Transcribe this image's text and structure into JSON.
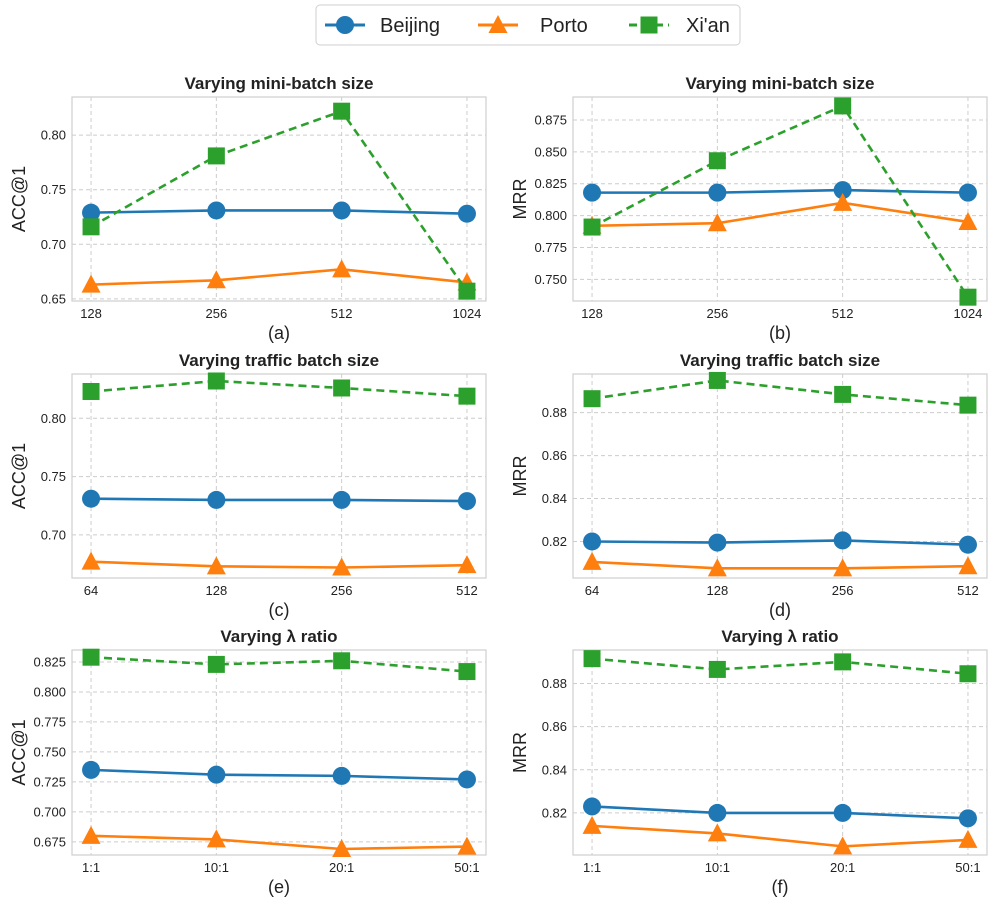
{
  "colors": {
    "Beijing": "#1f77b4",
    "Porto": "#ff7f0e",
    "Xi'an": "#2ca02c"
  },
  "legend": {
    "items": [
      {
        "label": "Beijing",
        "marker": "circle",
        "dashed": false
      },
      {
        "label": "Porto",
        "marker": "triangle",
        "dashed": false
      },
      {
        "label": "Xi'an",
        "marker": "square",
        "dashed": true
      }
    ]
  },
  "chart_data": [
    {
      "type": "line",
      "panel": "(a)",
      "title": "Varying mini-batch size",
      "ylabel": "ACC@1",
      "categories": [
        "128",
        "256",
        "512",
        "1024"
      ],
      "ylim": [
        0.648,
        0.835
      ],
      "yticks": [
        0.65,
        0.7,
        0.75,
        0.8
      ],
      "ytick_labels": [
        "0.65",
        "0.70",
        "0.75",
        "0.80"
      ],
      "series": [
        {
          "name": "Beijing",
          "values": [
            0.729,
            0.731,
            0.731,
            0.728
          ]
        },
        {
          "name": "Porto",
          "values": [
            0.663,
            0.667,
            0.677,
            0.665
          ]
        },
        {
          "name": "Xi'an",
          "values": [
            0.716,
            0.781,
            0.822,
            0.657
          ]
        }
      ]
    },
    {
      "type": "line",
      "panel": "(b)",
      "title": "Varying mini-batch size",
      "ylabel": "MRR",
      "categories": [
        "128",
        "256",
        "512",
        "1024"
      ],
      "ylim": [
        0.733,
        0.893
      ],
      "yticks": [
        0.75,
        0.775,
        0.8,
        0.825,
        0.85,
        0.875
      ],
      "ytick_labels": [
        "0.750",
        "0.775",
        "0.800",
        "0.825",
        "0.850",
        "0.875"
      ],
      "series": [
        {
          "name": "Beijing",
          "values": [
            0.818,
            0.818,
            0.82,
            0.818
          ]
        },
        {
          "name": "Porto",
          "values": [
            0.792,
            0.794,
            0.81,
            0.795
          ]
        },
        {
          "name": "Xi'an",
          "values": [
            0.791,
            0.843,
            0.886,
            0.736
          ]
        }
      ]
    },
    {
      "type": "line",
      "panel": "(c)",
      "title": "Varying traffic batch size",
      "ylabel": "ACC@1",
      "categories": [
        "64",
        "128",
        "256",
        "512"
      ],
      "ylim": [
        0.663,
        0.838
      ],
      "yticks": [
        0.7,
        0.75,
        0.8
      ],
      "ytick_labels": [
        "0.70",
        "0.75",
        "0.80"
      ],
      "series": [
        {
          "name": "Beijing",
          "values": [
            0.731,
            0.73,
            0.73,
            0.729
          ]
        },
        {
          "name": "Porto",
          "values": [
            0.677,
            0.673,
            0.672,
            0.674
          ]
        },
        {
          "name": "Xi'an",
          "values": [
            0.823,
            0.832,
            0.826,
            0.819
          ]
        }
      ]
    },
    {
      "type": "line",
      "panel": "(d)",
      "title": "Varying traffic batch size",
      "ylabel": "MRR",
      "categories": [
        "64",
        "128",
        "256",
        "512"
      ],
      "ylim": [
        0.803,
        0.898
      ],
      "yticks": [
        0.82,
        0.84,
        0.86,
        0.88
      ],
      "ytick_labels": [
        "0.82",
        "0.84",
        "0.86",
        "0.88"
      ],
      "series": [
        {
          "name": "Beijing",
          "values": [
            0.82,
            0.8195,
            0.8205,
            0.8185
          ]
        },
        {
          "name": "Porto",
          "values": [
            0.8105,
            0.8075,
            0.8075,
            0.8085
          ]
        },
        {
          "name": "Xi'an",
          "values": [
            0.8865,
            0.895,
            0.8885,
            0.8835
          ]
        }
      ]
    },
    {
      "type": "line",
      "panel": "(e)",
      "title": "Varying λ ratio",
      "ylabel": "ACC@1",
      "categories": [
        "1:1",
        "10:1",
        "20:1",
        "50:1"
      ],
      "ylim": [
        0.664,
        0.835
      ],
      "yticks": [
        0.675,
        0.7,
        0.725,
        0.75,
        0.775,
        0.8,
        0.825
      ],
      "ytick_labels": [
        "0.675",
        "0.700",
        "0.725",
        "0.750",
        "0.775",
        "0.800",
        "0.825"
      ],
      "series": [
        {
          "name": "Beijing",
          "values": [
            0.735,
            0.731,
            0.73,
            0.727
          ]
        },
        {
          "name": "Porto",
          "values": [
            0.68,
            0.677,
            0.669,
            0.671
          ]
        },
        {
          "name": "Xi'an",
          "values": [
            0.829,
            0.823,
            0.826,
            0.817
          ]
        }
      ]
    },
    {
      "type": "line",
      "panel": "(f)",
      "title": "Varying λ ratio",
      "ylabel": "MRR",
      "categories": [
        "1:1",
        "10:1",
        "20:1",
        "50:1"
      ],
      "ylim": [
        0.8005,
        0.8955
      ],
      "yticks": [
        0.82,
        0.84,
        0.86,
        0.88
      ],
      "ytick_labels": [
        "0.82",
        "0.84",
        "0.86",
        "0.88"
      ],
      "series": [
        {
          "name": "Beijing",
          "values": [
            0.823,
            0.82,
            0.82,
            0.8175
          ]
        },
        {
          "name": "Porto",
          "values": [
            0.814,
            0.8105,
            0.8045,
            0.8075
          ]
        },
        {
          "name": "Xi'an",
          "values": [
            0.8915,
            0.8865,
            0.89,
            0.8845
          ]
        }
      ]
    }
  ]
}
